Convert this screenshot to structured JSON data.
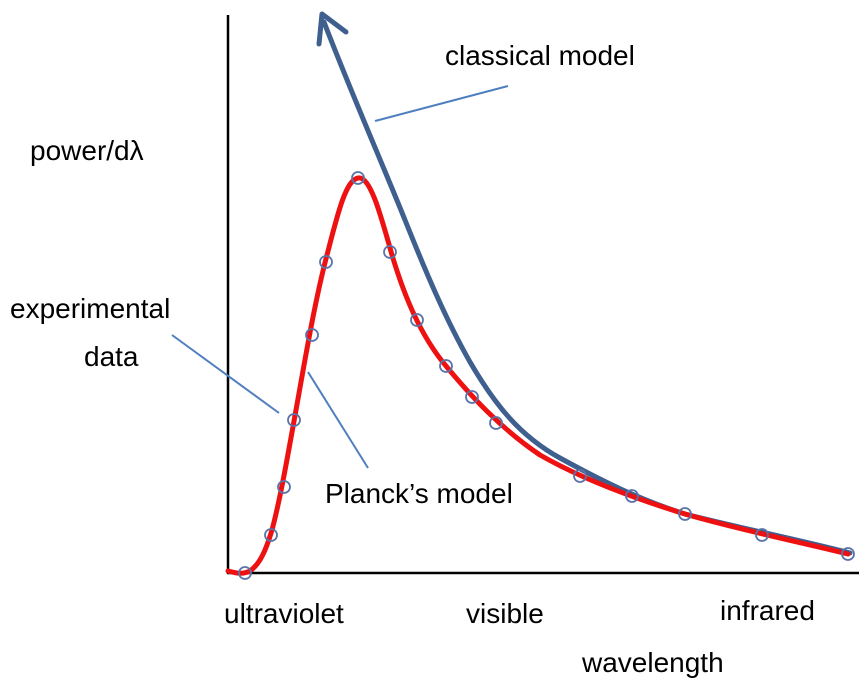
{
  "labels": {
    "classical": "classical model",
    "y_axis": "power/dλ",
    "experimental": [
      "experimental",
      "data"
    ],
    "planck": "Planck’s model",
    "ultraviolet": "ultraviolet",
    "visible": "visible",
    "infrared": "infrared",
    "x_axis": "wavelength"
  }
}
